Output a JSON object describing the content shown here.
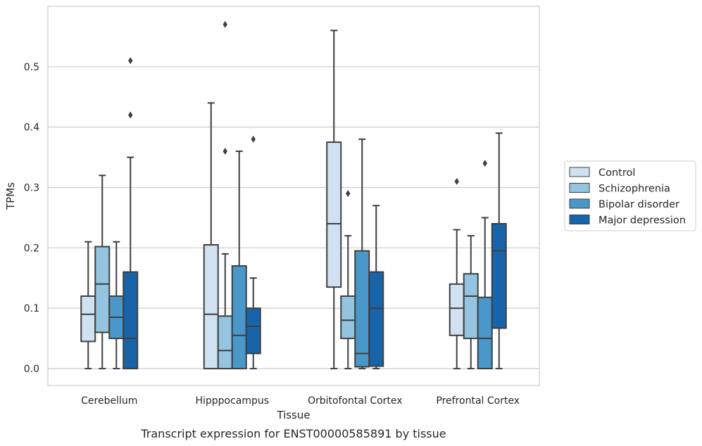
{
  "caption": "Transcript expression for ENST00000585891 by tissue",
  "chart_data": {
    "type": "box",
    "xlabel": "Tissue",
    "ylabel": "TPMs",
    "ylim": [
      -0.028,
      0.6
    ],
    "yticks": [
      "0.0",
      "0.1",
      "0.2",
      "0.3",
      "0.4",
      "0.5"
    ],
    "grid": "horizontal",
    "legend_position": "right",
    "categories": [
      "Cerebellum",
      "Hipppocampus",
      "Orbitofontal Cortex",
      "Prefrontal Cortex"
    ],
    "series": [
      {
        "name": "Control",
        "color": "#d0e1f2",
        "boxes": [
          {
            "whislo": 0.0,
            "q1": 0.045,
            "med": 0.09,
            "q3": 0.12,
            "whishi": 0.21,
            "fliers": []
          },
          {
            "whislo": 0.0,
            "q1": 0.0,
            "med": 0.09,
            "q3": 0.205,
            "whishi": 0.44,
            "fliers": []
          },
          {
            "whislo": 0.0,
            "q1": 0.135,
            "med": 0.24,
            "q3": 0.375,
            "whishi": 0.56,
            "fliers": []
          },
          {
            "whislo": 0.0,
            "q1": 0.055,
            "med": 0.1,
            "q3": 0.14,
            "whishi": 0.23,
            "fliers": [
              0.31
            ]
          }
        ]
      },
      {
        "name": "Schizophrenia",
        "color": "#94c4df",
        "boxes": [
          {
            "whislo": 0.0,
            "q1": 0.06,
            "med": 0.14,
            "q3": 0.202,
            "whishi": 0.32,
            "fliers": []
          },
          {
            "whislo": 0.0,
            "q1": 0.0,
            "med": 0.03,
            "q3": 0.087,
            "whishi": 0.19,
            "fliers": [
              0.36,
              0.57
            ]
          },
          {
            "whislo": 0.0,
            "q1": 0.05,
            "med": 0.08,
            "q3": 0.12,
            "whishi": 0.22,
            "fliers": [
              0.29
            ]
          },
          {
            "whislo": 0.0,
            "q1": 0.05,
            "med": 0.12,
            "q3": 0.157,
            "whishi": 0.22,
            "fliers": []
          }
        ]
      },
      {
        "name": "Bipolar disorder",
        "color": "#4a98c9",
        "boxes": [
          {
            "whislo": 0.0,
            "q1": 0.05,
            "med": 0.085,
            "q3": 0.12,
            "whishi": 0.21,
            "fliers": []
          },
          {
            "whislo": 0.0,
            "q1": 0.0,
            "med": 0.055,
            "q3": 0.17,
            "whishi": 0.36,
            "fliers": []
          },
          {
            "whislo": 0.0,
            "q1": 0.003,
            "med": 0.025,
            "q3": 0.195,
            "whishi": 0.38,
            "fliers": []
          },
          {
            "whislo": 0.0,
            "q1": 0.0,
            "med": 0.05,
            "q3": 0.118,
            "whishi": 0.25,
            "fliers": [
              0.34
            ]
          }
        ]
      },
      {
        "name": "Major depression",
        "color": "#1764ab",
        "boxes": [
          {
            "whislo": 0.0,
            "q1": 0.0,
            "med": 0.05,
            "q3": 0.16,
            "whishi": 0.35,
            "fliers": [
              0.42,
              0.51
            ]
          },
          {
            "whislo": 0.0,
            "q1": 0.025,
            "med": 0.07,
            "q3": 0.1,
            "whishi": 0.15,
            "fliers": [
              0.38
            ]
          },
          {
            "whislo": 0.0,
            "q1": 0.004,
            "med": 0.1,
            "q3": 0.16,
            "whishi": 0.27,
            "fliers": []
          },
          {
            "whislo": 0.0,
            "q1": 0.067,
            "med": 0.195,
            "q3": 0.24,
            "whishi": 0.39,
            "fliers": []
          }
        ]
      }
    ]
  }
}
